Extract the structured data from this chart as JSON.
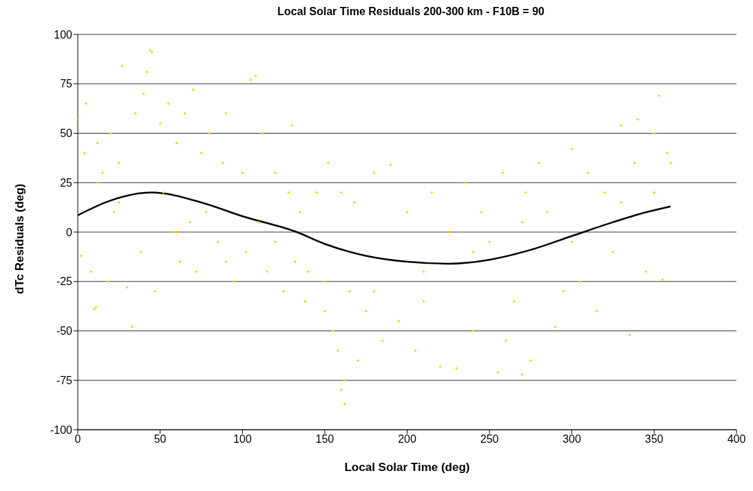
{
  "chart_data": {
    "type": "scatter",
    "title": "Local Solar Time Residuals 200-300 km - F10B = 90",
    "xlabel": "Local Solar Time (deg)",
    "ylabel": "dTc Residuals (deg)",
    "xlim": [
      0,
      400
    ],
    "xticks": [
      0,
      50,
      100,
      150,
      200,
      250,
      300,
      350,
      400
    ],
    "ylim": [
      -100,
      100
    ],
    "yticks": [
      -100,
      -75,
      -50,
      -25,
      0,
      25,
      50,
      75,
      100
    ],
    "grid": "y",
    "series": [
      {
        "color": "#ffcc00",
        "marker": "diamond",
        "x": [
          0,
          2,
          4,
          5,
          8,
          10,
          11,
          12,
          15,
          18,
          20,
          22,
          25,
          27,
          30,
          33,
          35,
          38,
          40,
          42,
          44,
          45,
          47,
          50,
          52,
          55,
          58,
          60,
          62,
          65,
          68,
          70,
          72,
          75,
          78,
          80,
          85,
          88,
          90,
          95,
          100,
          102,
          105,
          108,
          110,
          112,
          115,
          120,
          125,
          128,
          130,
          132,
          135,
          138,
          140,
          145,
          150,
          152,
          155,
          158,
          160,
          160,
          162,
          162,
          165,
          168,
          170,
          175,
          180,
          185,
          190,
          195,
          200,
          205,
          210,
          215,
          220,
          225,
          230,
          235,
          240,
          245,
          250,
          255,
          258,
          260,
          265,
          270,
          272,
          275,
          280,
          285,
          290,
          295,
          300,
          305,
          310,
          315,
          320,
          325,
          330,
          335,
          338,
          340,
          345,
          350,
          353,
          355,
          358,
          360,
          12,
          25,
          60,
          90,
          120,
          150,
          180,
          210,
          240,
          270,
          300,
          330,
          350
        ],
        "values": [
          57,
          -12,
          40,
          65,
          -20,
          -39,
          -38,
          45,
          30,
          -25,
          50,
          10,
          35,
          84,
          -28,
          -48,
          60,
          -10,
          70,
          81,
          92,
          91,
          -30,
          55,
          20,
          65,
          0,
          45,
          -15,
          60,
          5,
          72,
          -20,
          40,
          10,
          50,
          -5,
          35,
          60,
          -25,
          30,
          -10,
          77,
          79,
          5,
          50,
          -20,
          30,
          -30,
          20,
          54,
          -15,
          10,
          -35,
          -20,
          20,
          -40,
          35,
          -50,
          -60,
          -80,
          20,
          -87,
          -75,
          -30,
          15,
          -65,
          -40,
          30,
          -55,
          34,
          -45,
          10,
          -60,
          -35,
          20,
          -68,
          0,
          -69,
          25,
          -50,
          10,
          -5,
          -71,
          30,
          -55,
          -35,
          -72,
          20,
          -65,
          35,
          10,
          -48,
          -30,
          42,
          -25,
          30,
          -40,
          20,
          -10,
          54,
          -52,
          35,
          57,
          -20,
          50,
          69,
          -24,
          40,
          35,
          25,
          15,
          0,
          -15,
          -5,
          -25,
          -30,
          -20,
          -10,
          5,
          -5,
          15,
          20
        ]
      },
      {
        "type": "line",
        "color": "#000000",
        "marker": "none",
        "x": [
          0,
          20,
          45,
          75,
          100,
          133,
          150,
          175,
          200,
          225,
          250,
          275,
          300,
          325,
          345,
          360
        ],
        "values": [
          8.5,
          16,
          20,
          15,
          8,
          0,
          -6,
          -12,
          -15,
          -16,
          -14,
          -9,
          -2,
          5,
          10,
          13
        ]
      }
    ]
  }
}
